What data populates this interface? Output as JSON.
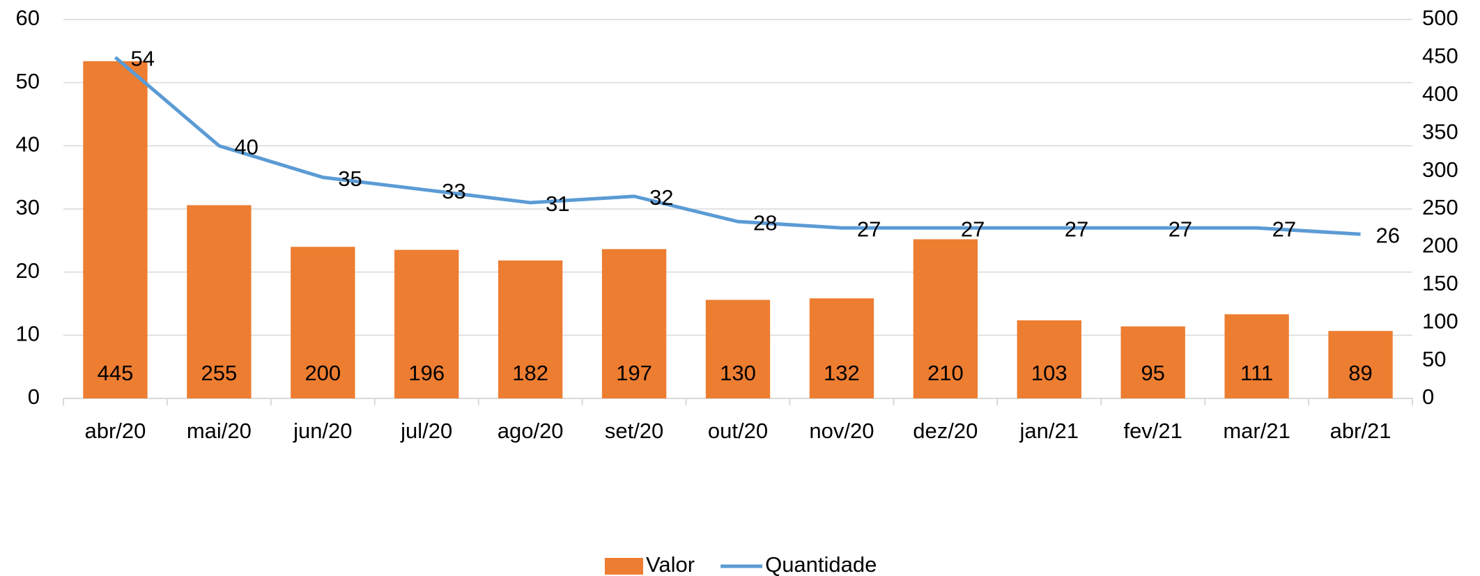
{
  "chart_data": {
    "type": "combo",
    "categories": [
      "abr/20",
      "mai/20",
      "jun/20",
      "jul/20",
      "ago/20",
      "set/20",
      "out/20",
      "nov/20",
      "dez/20",
      "jan/21",
      "fev/21",
      "mar/21",
      "abr/21"
    ],
    "series": [
      {
        "name": "Valor",
        "type": "bar",
        "axis": "y2",
        "color": "#ed7d31",
        "values": [
          445,
          255,
          200,
          196,
          182,
          197,
          130,
          132,
          210,
          103,
          95,
          111,
          89
        ]
      },
      {
        "name": "Quantidade",
        "type": "line",
        "axis": "y",
        "color": "#5b9bd5",
        "values": [
          54,
          40,
          35,
          33,
          31,
          32,
          28,
          27,
          27,
          27,
          27,
          27,
          26
        ]
      }
    ],
    "ylim": [
      0,
      60
    ],
    "yticks": [
      0,
      10,
      20,
      30,
      40,
      50,
      60
    ],
    "y2lim": [
      0,
      500
    ],
    "y2ticks": [
      0,
      50,
      100,
      150,
      200,
      250,
      300,
      350,
      400,
      450,
      500
    ],
    "grid": true,
    "legend": "bottom"
  }
}
